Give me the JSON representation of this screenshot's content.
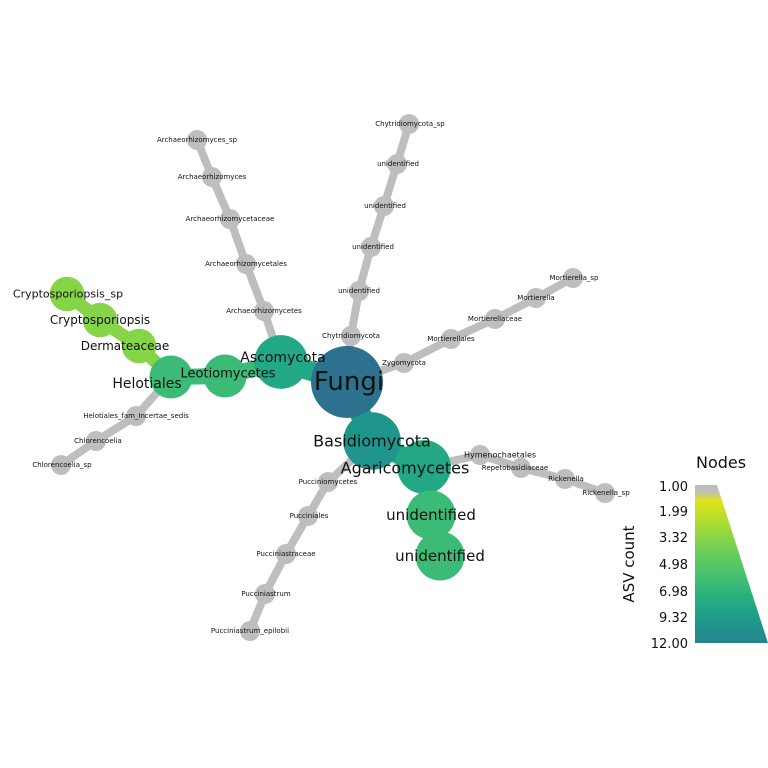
{
  "root": "Fungi",
  "colors": {
    "zero": "#bebebe",
    "scale": [
      "#dfe318",
      "#b2dd2c",
      "#86d549",
      "#5cc863",
      "#3bbb75",
      "#22a884",
      "#1f968b",
      "#25858e",
      "#2c728e"
    ]
  },
  "legend": {
    "title": "Nodes",
    "axis_label": "ASV count",
    "ticks": [
      "1.00",
      "1.99",
      "3.32",
      "4.98",
      "6.98",
      "9.32",
      "12.00"
    ]
  },
  "nodes": [
    {
      "id": "fungi",
      "label": "Fungi",
      "count": 12
    },
    {
      "id": "ascomycota",
      "label": "Ascomycota",
      "count": 5
    },
    {
      "id": "leotiomycetes",
      "label": "Leotiomycetes",
      "count": 3
    },
    {
      "id": "helotiales",
      "label": "Helotiales",
      "count": 3
    },
    {
      "id": "dermateaceae",
      "label": "Dermateaceae",
      "count": 2
    },
    {
      "id": "cryptosporiopsis",
      "label": "Cryptosporiopsis",
      "count": 2
    },
    {
      "id": "cryptosporiopsis_sp",
      "label": "Cryptosporiopsis_sp",
      "count": 2
    },
    {
      "id": "helotiales_fam",
      "label": "Helotiales_fam_Incertae_sedis",
      "count": 1
    },
    {
      "id": "chlorencoelia",
      "label": "Chlorencoelia",
      "count": 1
    },
    {
      "id": "chlorencoelia_sp",
      "label": "Chlorencoelia_sp",
      "count": 1
    },
    {
      "id": "archaeorhizomycetes",
      "label": "Archaeorhizomycetes",
      "count": 1
    },
    {
      "id": "archaeorhizomycetales",
      "label": "Archaeorhizomycetales",
      "count": 1
    },
    {
      "id": "archaeorhizomycetaceae",
      "label": "Archaeorhizomycetaceae",
      "count": 1
    },
    {
      "id": "archaeorhizomyces",
      "label": "Archaeorhizomyces",
      "count": 1
    },
    {
      "id": "archaeorhizomyces_sp",
      "label": "Archaeorhizomyces_sp",
      "count": 1
    },
    {
      "id": "chytridiomycota",
      "label": "Chytridiomycota",
      "count": 1
    },
    {
      "id": "chyt_u1",
      "label": "unidentified",
      "count": 1
    },
    {
      "id": "chyt_u2",
      "label": "unidentified",
      "count": 1
    },
    {
      "id": "chyt_u3",
      "label": "unidentified",
      "count": 1
    },
    {
      "id": "chyt_u4",
      "label": "unidentified",
      "count": 1
    },
    {
      "id": "chytridiomycota_sp",
      "label": "Chytridiomycota_sp",
      "count": 1
    },
    {
      "id": "zygomycota",
      "label": "Zygomycota",
      "count": 1
    },
    {
      "id": "mortierellales",
      "label": "Mortierellales",
      "count": 1
    },
    {
      "id": "mortierellaceae",
      "label": "Mortierellaceae",
      "count": 1
    },
    {
      "id": "mortierella",
      "label": "Mortierella",
      "count": 1
    },
    {
      "id": "mortierella_sp",
      "label": "Mortierella_sp",
      "count": 1
    },
    {
      "id": "basidiomycota",
      "label": "Basidiomycota",
      "count": 6
    },
    {
      "id": "agaricomycetes",
      "label": "Agaricomycetes",
      "count": 5
    },
    {
      "id": "agar_u1",
      "label": "unidentified",
      "count": 4
    },
    {
      "id": "agar_u2",
      "label": "unidentified",
      "count": 4
    },
    {
      "id": "hymenochaetales",
      "label": "Hymenochaetales",
      "count": 1
    },
    {
      "id": "repetobasidiaceae",
      "label": "Repetobasidiaceae",
      "count": 1
    },
    {
      "id": "rickenella",
      "label": "Rickenella",
      "count": 1
    },
    {
      "id": "rickenella_sp",
      "label": "Rickenella_sp",
      "count": 1
    },
    {
      "id": "pucciniomycetes",
      "label": "Pucciniomycetes",
      "count": 1
    },
    {
      "id": "pucciniales",
      "label": "Pucciniales",
      "count": 1
    },
    {
      "id": "pucciniastraceae",
      "label": "Pucciniastraceae",
      "count": 1
    },
    {
      "id": "pucciniastrum",
      "label": "Pucciniastrum",
      "count": 1
    },
    {
      "id": "pucciniastrum_epilobii",
      "label": "Pucciniastrum_epilobii",
      "count": 1
    }
  ],
  "edges": [
    [
      "fungi",
      "ascomycota"
    ],
    [
      "ascomycota",
      "leotiomycetes"
    ],
    [
      "leotiomycetes",
      "helotiales"
    ],
    [
      "helotiales",
      "dermateaceae"
    ],
    [
      "dermateaceae",
      "cryptosporiopsis"
    ],
    [
      "cryptosporiopsis",
      "cryptosporiopsis_sp"
    ],
    [
      "helotiales",
      "helotiales_fam"
    ],
    [
      "helotiales_fam",
      "chlorencoelia"
    ],
    [
      "chlorencoelia",
      "chlorencoelia_sp"
    ],
    [
      "ascomycota",
      "archaeorhizomycetes"
    ],
    [
      "archaeorhizomycetes",
      "archaeorhizomycetales"
    ],
    [
      "archaeorhizomycetales",
      "archaeorhizomycetaceae"
    ],
    [
      "archaeorhizomycetaceae",
      "archaeorhizomyces"
    ],
    [
      "archaeorhizomyces",
      "archaeorhizomyces_sp"
    ],
    [
      "fungi",
      "chytridiomycota"
    ],
    [
      "chytridiomycota",
      "chyt_u1"
    ],
    [
      "chyt_u1",
      "chyt_u2"
    ],
    [
      "chyt_u2",
      "chyt_u3"
    ],
    [
      "chyt_u3",
      "chyt_u4"
    ],
    [
      "chyt_u4",
      "chytridiomycota_sp"
    ],
    [
      "fungi",
      "zygomycota"
    ],
    [
      "zygomycota",
      "mortierellales"
    ],
    [
      "mortierellales",
      "mortierellaceae"
    ],
    [
      "mortierellaceae",
      "mortierella"
    ],
    [
      "mortierella",
      "mortierella_sp"
    ],
    [
      "fungi",
      "basidiomycota"
    ],
    [
      "basidiomycota",
      "agaricomycetes"
    ],
    [
      "agaricomycetes",
      "agar_u1"
    ],
    [
      "agar_u1",
      "agar_u2"
    ],
    [
      "agaricomycetes",
      "hymenochaetales"
    ],
    [
      "hymenochaetales",
      "repetobasidiaceae"
    ],
    [
      "repetobasidiaceae",
      "rickenella"
    ],
    [
      "rickenella",
      "rickenella_sp"
    ],
    [
      "basidiomycota",
      "pucciniomycetes"
    ],
    [
      "pucciniomycetes",
      "pucciniales"
    ],
    [
      "pucciniales",
      "pucciniastraceae"
    ],
    [
      "pucciniastraceae",
      "pucciniastrum"
    ],
    [
      "pucciniastrum",
      "pucciniastrum_epilobii"
    ]
  ]
}
